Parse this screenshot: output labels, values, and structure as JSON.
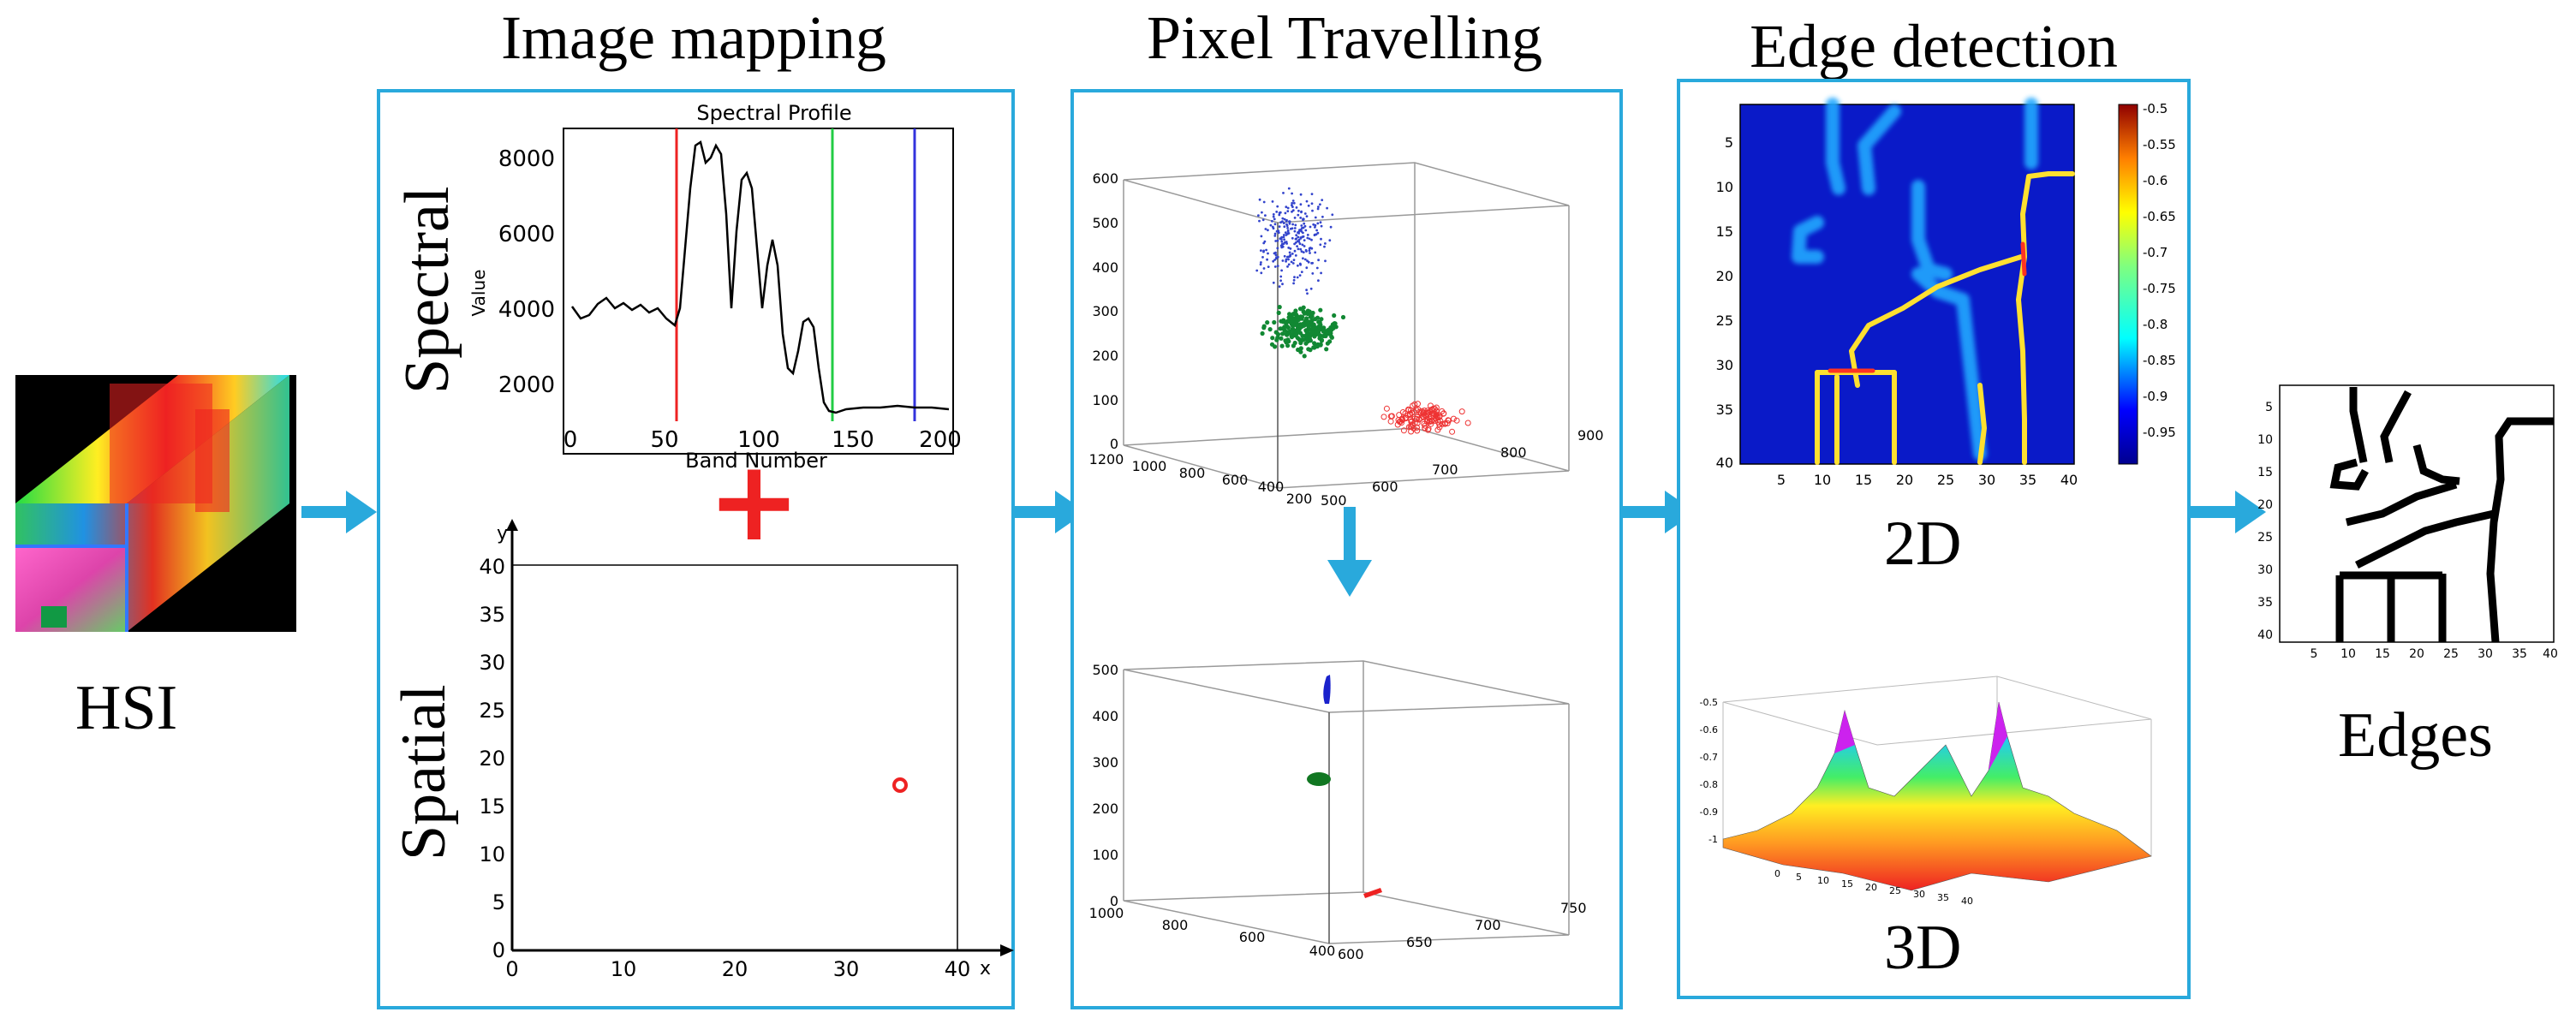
{
  "inputs": {
    "hsi_label": "HSI"
  },
  "stages": {
    "mapping": {
      "title": "Image mapping",
      "spectral_label": "Spectral",
      "spatial_label": "Spatial",
      "plus_symbol": "+",
      "spectral_chart": {
        "title": "Spectral Profile",
        "xlabel": "Band Number",
        "ylabel": "Value",
        "x_ticks": [
          "0",
          "50",
          "100",
          "150",
          "200"
        ],
        "y_ticks": [
          "2000",
          "4000",
          "6000",
          "8000"
        ]
      },
      "spatial_chart": {
        "x_axis_label": "x",
        "y_axis_label": "y",
        "x_ticks": [
          "0",
          "10",
          "20",
          "30",
          "40"
        ],
        "y_ticks": [
          "0",
          "5",
          "10",
          "15",
          "20",
          "25",
          "30",
          "35",
          "40"
        ]
      }
    },
    "travelling": {
      "title": "Pixel Travelling",
      "top_plot": {
        "z_ticks": [
          "0",
          "100",
          "200",
          "300",
          "400",
          "500",
          "600"
        ],
        "x_ticks": [
          "1200",
          "1000",
          "800",
          "600",
          "400",
          "200"
        ],
        "y_ticks": [
          "500",
          "600",
          "700",
          "800",
          "900"
        ]
      },
      "bottom_plot": {
        "z_ticks": [
          "0",
          "100",
          "200",
          "300",
          "400",
          "500"
        ],
        "x_ticks": [
          "1000",
          "800",
          "600",
          "400"
        ],
        "y_ticks": [
          "600",
          "650",
          "700",
          "750"
        ]
      }
    },
    "edge": {
      "title": "Edge detection",
      "label_2d": "2D",
      "label_3d": "3D",
      "heatmap": {
        "x_ticks": [
          "5",
          "10",
          "15",
          "20",
          "25",
          "30",
          "35",
          "40"
        ],
        "y_ticks": [
          "5",
          "10",
          "15",
          "20",
          "25",
          "30",
          "35",
          "40"
        ],
        "colorbar_ticks": [
          "-0.5",
          "-0.55",
          "-0.6",
          "-0.65",
          "-0.7",
          "-0.75",
          "-0.8",
          "-0.85",
          "-0.9",
          "-0.95"
        ]
      },
      "surface": {
        "z_ticks": [
          "-0.5",
          "-0.6",
          "-0.7",
          "-0.8",
          "-0.9",
          "-1"
        ],
        "x_ticks": [
          "0",
          "5",
          "10",
          "15",
          "20",
          "25",
          "30",
          "35",
          "40"
        ]
      }
    }
  },
  "outputs": {
    "edges_label": "Edges",
    "edges_plot": {
      "x_ticks": [
        "5",
        "10",
        "15",
        "20",
        "25",
        "30",
        "35",
        "40"
      ],
      "y_ticks": [
        "5",
        "10",
        "15",
        "20",
        "25",
        "30",
        "35",
        "40"
      ]
    }
  }
}
